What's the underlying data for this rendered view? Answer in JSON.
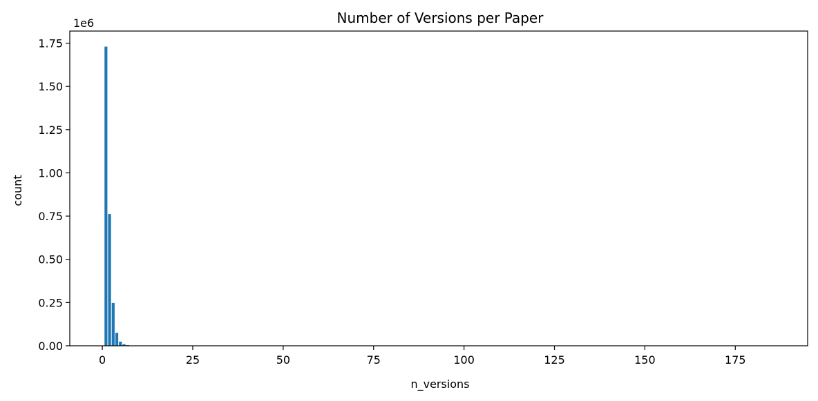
{
  "chart_data": {
    "type": "bar",
    "title": "Number of Versions per Paper",
    "xlabel": "n_versions",
    "ylabel": "count",
    "y_offset_label": "1e6",
    "x": [
      1,
      2,
      3,
      4,
      5,
      6,
      7,
      8,
      9,
      10
    ],
    "values": [
      1730000,
      762000,
      248000,
      75000,
      24000,
      9000,
      4000,
      2000,
      1000,
      500
    ],
    "xlim": [
      -9,
      195
    ],
    "ylim": [
      0,
      1820000
    ],
    "xticks": [
      0,
      25,
      50,
      75,
      100,
      125,
      150,
      175
    ],
    "xtick_labels": [
      "0",
      "25",
      "50",
      "75",
      "100",
      "125",
      "150",
      "175"
    ],
    "yticks": [
      0,
      250000,
      500000,
      750000,
      1000000,
      1250000,
      1500000,
      1750000
    ],
    "ytick_labels": [
      "0.00",
      "0.25",
      "0.50",
      "0.75",
      "1.00",
      "1.25",
      "1.50",
      "1.75"
    ],
    "bar_color": "#1f77b4",
    "grid": false,
    "legend": "none"
  }
}
